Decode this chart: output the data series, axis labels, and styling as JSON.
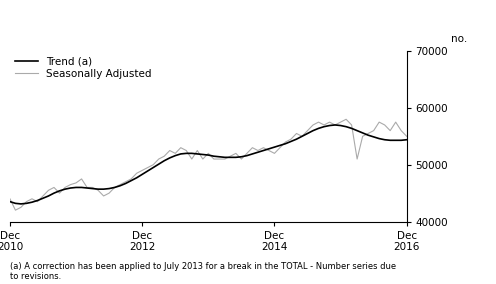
{
  "title": "",
  "ylabel": "no.",
  "ylim": [
    40000,
    70000
  ],
  "yticks": [
    40000,
    50000,
    60000,
    70000
  ],
  "footnote": "(a) A correction has been applied to July 2013 for a break in the TOTAL - Number series due\nto revisions.",
  "legend_entries": [
    "Trend (a)",
    "Seasonally Adjusted"
  ],
  "trend_color": "#000000",
  "seasonal_color": "#aaaaaa",
  "background_color": "#ffffff",
  "x_tick_labels": [
    [
      "Dec\n2010",
      0
    ],
    [
      "Dec\n2012",
      24
    ],
    [
      "Dec\n2014",
      48
    ],
    [
      "Dec\n2016",
      72
    ]
  ],
  "trend": [
    43500,
    43200,
    43100,
    43200,
    43400,
    43700,
    44100,
    44500,
    45000,
    45400,
    45700,
    45900,
    46000,
    46000,
    45900,
    45800,
    45700,
    45700,
    45800,
    46000,
    46300,
    46700,
    47200,
    47700,
    48300,
    48900,
    49500,
    50100,
    50700,
    51200,
    51600,
    51900,
    52000,
    52000,
    51900,
    51800,
    51700,
    51500,
    51400,
    51300,
    51300,
    51300,
    51400,
    51600,
    51900,
    52200,
    52500,
    52800,
    53100,
    53400,
    53700,
    54100,
    54500,
    55000,
    55500,
    56000,
    56400,
    56700,
    56900,
    57000,
    56900,
    56700,
    56400,
    56000,
    55600,
    55200,
    54900,
    54600,
    54400,
    54300,
    54300,
    54300,
    54400
  ],
  "seasonal": [
    44000,
    42000,
    42500,
    43500,
    44000,
    43500,
    44500,
    45500,
    46000,
    45000,
    46000,
    46500,
    46800,
    47500,
    46000,
    46000,
    45500,
    44500,
    45000,
    46000,
    46500,
    47000,
    47500,
    48500,
    49000,
    49500,
    50000,
    51000,
    51500,
    52500,
    52000,
    53000,
    52500,
    51000,
    52500,
    51000,
    52000,
    51000,
    51000,
    51000,
    51500,
    52000,
    51000,
    52000,
    53000,
    52500,
    53000,
    52500,
    52000,
    53000,
    54000,
    54500,
    55500,
    55000,
    56000,
    57000,
    57500,
    57000,
    57500,
    57000,
    57500,
    58000,
    57000,
    51000,
    55000,
    55500,
    56000,
    57500,
    57000,
    56000,
    57500,
    56000,
    55000
  ]
}
